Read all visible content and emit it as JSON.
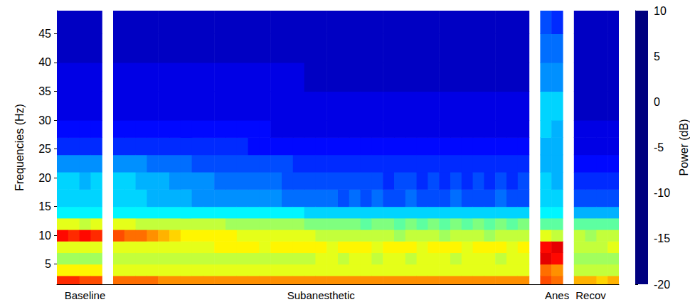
{
  "chart_data": {
    "type": "heatmap",
    "y_label": "Frequencies (Hz)",
    "categories": [
      null,
      null,
      "Baseline",
      null,
      null,
      null,
      null,
      null,
      null,
      null,
      null,
      null,
      null,
      null,
      null,
      null,
      null,
      null,
      null,
      null,
      null,
      null,
      null,
      "Subanesthetic",
      null,
      null,
      null,
      null,
      null,
      null,
      null,
      null,
      null,
      null,
      null,
      null,
      null,
      null,
      null,
      null,
      null,
      null,
      null,
      null,
      "Anes",
      null,
      null,
      "Recov",
      null,
      null
    ],
    "ylim": [
      1.5,
      49
    ],
    "yticks": [
      5,
      10,
      15,
      20,
      25,
      30,
      35,
      40,
      45
    ],
    "y_bins": [
      1.5,
      3,
      5,
      7,
      9,
      11,
      13,
      15,
      18,
      21,
      24,
      27,
      30,
      35,
      40,
      45,
      49
    ],
    "cells": [
      [
        5,
        -1,
        -4,
        -2,
        6,
        -2,
        -9,
        -10,
        -10,
        -12,
        -15,
        -16,
        -17,
        -17,
        -18,
        -18
      ],
      [
        5,
        -1,
        -4,
        -2,
        5,
        -2,
        -9,
        -10,
        -10,
        -12,
        -15,
        -16,
        -17,
        -17,
        -18,
        -18
      ],
      [
        4,
        -1,
        -4,
        -2,
        6,
        -3,
        -9,
        -10,
        -11,
        -12,
        -15,
        -16,
        -17,
        -17,
        -18,
        -18
      ],
      [
        4,
        -1,
        -4,
        -2,
        5,
        -2,
        -9,
        -10,
        -10,
        -12,
        -15,
        -16,
        -17,
        -17,
        -18,
        -18
      ],
      null,
      [
        3,
        -2,
        -3,
        -2,
        4,
        -2,
        -9,
        -10,
        -10,
        -12,
        -15,
        -16,
        -17,
        -17,
        -18,
        -18
      ],
      [
        3,
        -2,
        -3,
        -2,
        3,
        -2,
        -9,
        -10,
        -10,
        -12,
        -15,
        -16,
        -17,
        -17,
        -18,
        -18
      ],
      [
        3,
        -2,
        -3,
        -2,
        3,
        -3,
        -9,
        -10,
        -11,
        -12,
        -15,
        -16,
        -17,
        -17,
        -18,
        -18
      ],
      [
        3,
        -2,
        -3,
        -2,
        2,
        -3,
        -9,
        -11,
        -11,
        -13,
        -15,
        -16,
        -17,
        -17,
        -18,
        -18
      ],
      [
        2,
        -2,
        -3,
        -2,
        1,
        -3,
        -9,
        -11,
        -11,
        -13,
        -15,
        -16,
        -17,
        -17,
        -18,
        -18
      ],
      [
        2,
        -2,
        -3,
        -2,
        0,
        -3,
        -9,
        -11,
        -12,
        -13,
        -15,
        -16,
        -17,
        -17,
        -18,
        -18
      ],
      [
        2,
        -2,
        -3,
        -2,
        -1,
        -3,
        -9,
        -11,
        -12,
        -13,
        -15,
        -16,
        -17,
        -17,
        -18,
        -18
      ],
      [
        2,
        -2,
        -3,
        -2,
        -1,
        -3,
        -9,
        -12,
        -12,
        -14,
        -15,
        -16,
        -17,
        -17,
        -18,
        -18
      ],
      [
        2,
        -2,
        -3,
        -2,
        -1,
        -3,
        -9,
        -12,
        -12,
        -14,
        -15,
        -16,
        -17,
        -17,
        -18,
        -18
      ],
      [
        2,
        -2,
        -3,
        -1,
        -1,
        -3,
        -9,
        -12,
        -13,
        -14,
        -15,
        -16,
        -17,
        -17,
        -18,
        -18
      ],
      [
        2,
        -2,
        -3,
        -1,
        -1,
        -4,
        -9,
        -12,
        -13,
        -14,
        -15,
        -16,
        -17,
        -17,
        -18,
        -18
      ],
      [
        2,
        -2,
        -3,
        -1,
        -2,
        -4,
        -9,
        -12,
        -13,
        -14,
        -15,
        -16,
        -17,
        -17,
        -18,
        -18
      ],
      [
        2,
        -2,
        -3,
        -1,
        -2,
        -4,
        -9,
        -12,
        -13,
        -14,
        -16,
        -16,
        -17,
        -17,
        -18,
        -18
      ],
      [
        2,
        -2,
        -3,
        -2,
        -2,
        -4,
        -9,
        -12,
        -13,
        -14,
        -16,
        -16,
        -17,
        -17,
        -18,
        -18
      ],
      [
        2,
        -2,
        -3,
        -1,
        -2,
        -4,
        -9,
        -12,
        -13,
        -14,
        -16,
        -17,
        -17,
        -17,
        -18,
        -18
      ],
      [
        2,
        -2,
        -3,
        -1,
        -2,
        -4,
        -9,
        -13,
        -14,
        -14,
        -16,
        -17,
        -17,
        -17,
        -18,
        -18
      ],
      [
        2,
        -2,
        -3,
        -1,
        -2,
        -4,
        -9,
        -13,
        -14,
        -15,
        -16,
        -17,
        -17,
        -17,
        -18,
        -18
      ],
      [
        2,
        -2,
        -3,
        -1,
        -2,
        -5,
        -10,
        -13,
        -14,
        -15,
        -16,
        -17,
        -17,
        -18,
        -18,
        -18
      ],
      [
        2,
        -2,
        -2,
        -1,
        -3,
        -5,
        -10,
        -13,
        -14,
        -15,
        -16,
        -17,
        -17,
        -18,
        -18,
        -18
      ],
      [
        2,
        -2,
        -2,
        -2,
        -3,
        -5,
        -10,
        -13,
        -14,
        -15,
        -16,
        -17,
        -17,
        -18,
        -18,
        -18
      ],
      [
        2,
        -2,
        -3,
        -1,
        -3,
        -5,
        -10,
        -14,
        -14,
        -15,
        -16,
        -17,
        -17,
        -18,
        -18,
        -18
      ],
      [
        2,
        -2,
        -2,
        -1,
        -3,
        -5,
        -10,
        -13,
        -14,
        -15,
        -16,
        -17,
        -17,
        -18,
        -18,
        -18
      ],
      [
        2,
        -2,
        -2,
        -1,
        -3,
        -6,
        -10,
        -14,
        -14,
        -15,
        -16,
        -17,
        -17,
        -18,
        -18,
        -18
      ],
      [
        2,
        -2,
        -3,
        -2,
        -3,
        -5,
        -10,
        -13,
        -14,
        -15,
        -16,
        -17,
        -17,
        -18,
        -18,
        -18
      ],
      [
        2,
        -2,
        -2,
        -1,
        -3,
        -5,
        -10,
        -14,
        -15,
        -15,
        -16,
        -17,
        -17,
        -18,
        -18,
        -18
      ],
      [
        2,
        -2,
        -2,
        -1,
        -4,
        -6,
        -10,
        -14,
        -14,
        -15,
        -16,
        -17,
        -17,
        -18,
        -18,
        -18
      ],
      [
        2,
        -2,
        -3,
        -1,
        -3,
        -5,
        -10,
        -13,
        -14,
        -15,
        -16,
        -17,
        -17,
        -18,
        -18,
        -18
      ],
      [
        2,
        -2,
        -2,
        -2,
        -3,
        -6,
        -10,
        -14,
        -15,
        -15,
        -16,
        -17,
        -17,
        -18,
        -18,
        -18
      ],
      [
        2,
        -2,
        -2,
        -1,
        -3,
        -5,
        -10,
        -14,
        -14,
        -15,
        -16,
        -17,
        -17,
        -18,
        -18,
        -18
      ],
      [
        2,
        -2,
        -2,
        -1,
        -4,
        -6,
        -10,
        -14,
        -15,
        -15,
        -16,
        -17,
        -17,
        -18,
        -18,
        -18
      ],
      [
        2,
        -2,
        -3,
        -1,
        -3,
        -5,
        -10,
        -13,
        -14,
        -15,
        -16,
        -17,
        -17,
        -18,
        -18,
        -18
      ],
      [
        2,
        -2,
        -2,
        -2,
        -3,
        -6,
        -10,
        -14,
        -15,
        -15,
        -16,
        -17,
        -17,
        -18,
        -18,
        -18
      ],
      [
        2,
        -2,
        -2,
        -1,
        -3,
        -5,
        -10,
        -14,
        -14,
        -15,
        -16,
        -17,
        -17,
        -18,
        -18,
        -18
      ],
      [
        2,
        -2,
        -2,
        -1,
        -4,
        -6,
        -10,
        -14,
        -15,
        -15,
        -16,
        -17,
        -17,
        -18,
        -18,
        -18
      ],
      [
        2,
        -2,
        -3,
        -1,
        -3,
        -5,
        -10,
        -13,
        -14,
        -15,
        -16,
        -17,
        -17,
        -18,
        -18,
        -18
      ],
      [
        2,
        -2,
        -2,
        -2,
        -3,
        -6,
        -10,
        -14,
        -15,
        -15,
        -16,
        -17,
        -17,
        -18,
        -18,
        -18
      ],
      [
        2,
        -2,
        -2,
        -1,
        -3,
        -5,
        -10,
        -14,
        -14,
        -15,
        -16,
        -17,
        -17,
        -18,
        -18,
        -18
      ],
      null,
      [
        4,
        3,
        7,
        6,
        -2,
        -6,
        -9,
        -10,
        -10,
        -11,
        -11,
        -10,
        -10,
        -12,
        -13,
        -14
      ],
      [
        3,
        2,
        6,
        7,
        -3,
        -6,
        -9,
        -10,
        -11,
        -11,
        -11,
        -11,
        -10,
        -12,
        -13,
        -15
      ],
      null,
      [
        1,
        -3,
        -4,
        -3,
        -3,
        -6,
        -11,
        -14,
        -15,
        -16,
        -17,
        -17,
        -18,
        -18,
        -18,
        -18
      ],
      [
        1,
        -3,
        -4,
        -3,
        -4,
        -6,
        -11,
        -14,
        -15,
        -16,
        -17,
        -17,
        -18,
        -18,
        -18,
        -18
      ],
      [
        0,
        -3,
        -4,
        -3,
        -3,
        -6,
        -11,
        -14,
        -15,
        -16,
        -17,
        -17,
        -18,
        -18,
        -18,
        -18
      ],
      [
        1,
        -3,
        -4,
        -2,
        -3,
        -6,
        -11,
        -14,
        -15,
        -16,
        -17,
        -17,
        -18,
        -18,
        -18,
        -18
      ]
    ],
    "colorbar": {
      "label": "Power (dB)",
      "range": [
        -20,
        10
      ],
      "ticks": [
        -20,
        -15,
        -10,
        -5,
        0,
        5,
        10
      ]
    }
  }
}
